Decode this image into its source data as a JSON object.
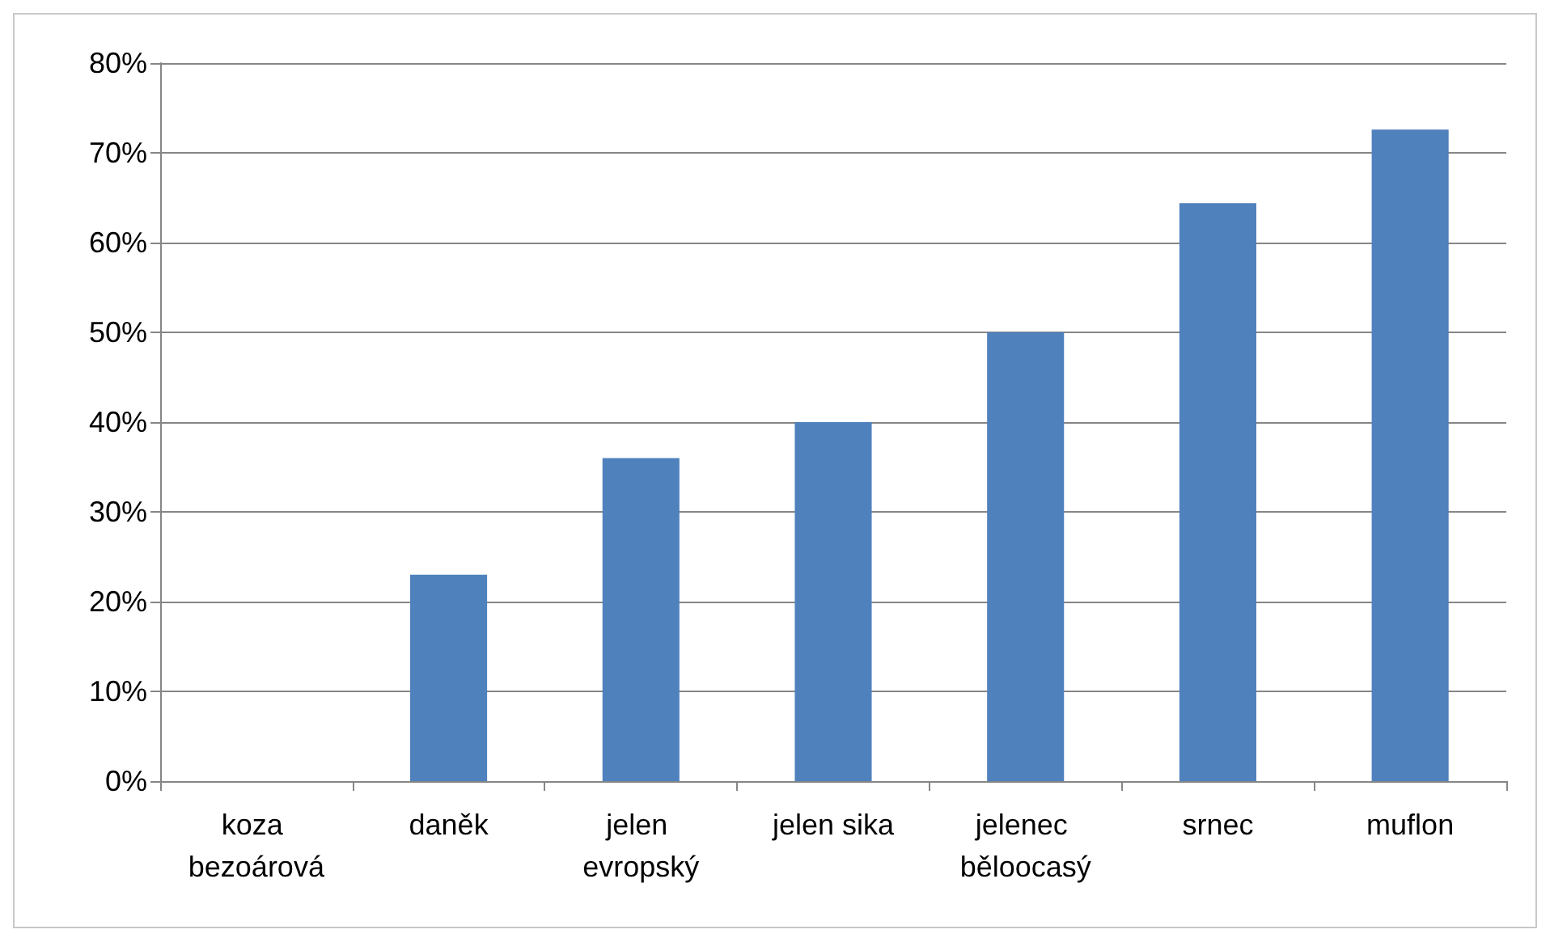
{
  "chart_data": {
    "type": "bar",
    "categories": [
      "koza bezoárová",
      "daněk",
      "jelen evropský",
      "jelen sika",
      "jelenec běloocasý",
      "srnec",
      "muflon"
    ],
    "values": [
      0,
      23,
      36,
      40,
      50,
      64.4,
      72.6
    ],
    "color": "#4f81bd",
    "ylim": [
      0,
      80
    ],
    "yticks": [
      {
        "value": 0,
        "label": "0%"
      },
      {
        "value": 10,
        "label": "10%"
      },
      {
        "value": 20,
        "label": "20%"
      },
      {
        "value": 30,
        "label": "30%"
      },
      {
        "value": 40,
        "label": "40%"
      },
      {
        "value": 50,
        "label": "50%"
      },
      {
        "value": 60,
        "label": "60%"
      },
      {
        "value": 70,
        "label": "70%"
      },
      {
        "value": 80,
        "label": "80%"
      }
    ],
    "grid": true
  }
}
